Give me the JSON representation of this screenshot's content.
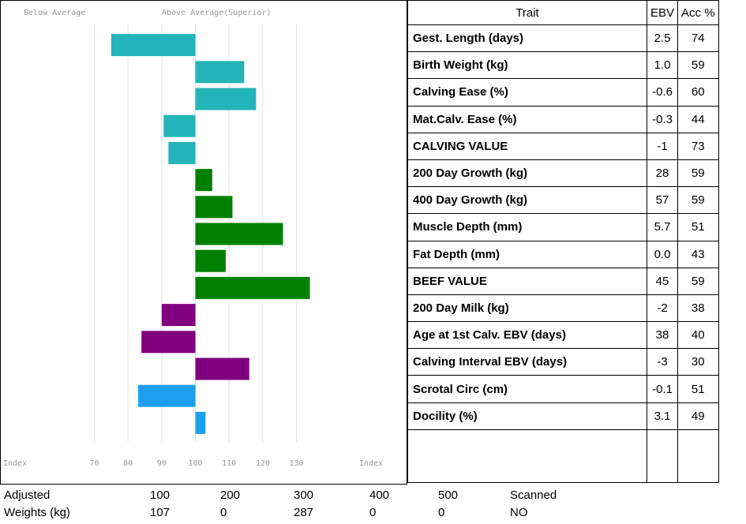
{
  "chart_data": {
    "type": "bar",
    "orientation": "horizontal",
    "left_label": "Below Average",
    "right_label": "Above Average(Superior)",
    "axis_label": "Index",
    "base": 100,
    "xlim": [
      42,
      158
    ],
    "xticks": [
      70,
      80,
      90,
      100,
      110,
      120,
      130
    ],
    "grid": true,
    "values": [
      75,
      114.5,
      118,
      90.6,
      92,
      105,
      111,
      126,
      109,
      134,
      90,
      84,
      116,
      83,
      103
    ],
    "colors": [
      "#22b4b8",
      "#22b4b8",
      "#22b4b8",
      "#22b4b8",
      "#22b4b8",
      "#008000",
      "#008000",
      "#008000",
      "#008000",
      "#008000",
      "#800080",
      "#800080",
      "#800080",
      "#1e9ef0",
      "#1e9ef0"
    ]
  },
  "table": {
    "header": [
      "Trait",
      "EBV",
      "Acc %"
    ],
    "rows": [
      [
        "Gest. Length (days)",
        "2.5",
        "74"
      ],
      [
        "Birth Weight (kg)",
        "1.0",
        "59"
      ],
      [
        "Calving Ease (%)",
        "-0.6",
        "60"
      ],
      [
        "Mat.Calv. Ease (%)",
        "-0.3",
        "44"
      ],
      [
        "CALVING VALUE",
        "-1",
        "73"
      ],
      [
        "200 Day Growth (kg)",
        "28",
        "59"
      ],
      [
        "400 Day Growth (kg)",
        "57",
        "59"
      ],
      [
        "Muscle Depth (mm)",
        "5.7",
        "51"
      ],
      [
        "Fat Depth (mm)",
        "0.0",
        "43"
      ],
      [
        "BEEF VALUE",
        "45",
        "59"
      ],
      [
        "200 Day Milk (kg)",
        "-2",
        "38"
      ],
      [
        "Age at 1st Calv. EBV (days)",
        "38",
        "40"
      ],
      [
        "Calving Interval EBV (days)",
        "-3",
        "30"
      ],
      [
        "Scrotal Circ (cm)",
        "-0.1",
        "51"
      ],
      [
        "Docility (%)",
        "3.1",
        "49"
      ]
    ]
  },
  "weights": {
    "rows": [
      [
        "Adjusted",
        "100",
        "200",
        "300",
        "400",
        "500",
        "Scanned"
      ],
      [
        "Weights (kg)",
        "107",
        "0",
        "287",
        "0",
        "0",
        "NO"
      ]
    ]
  }
}
